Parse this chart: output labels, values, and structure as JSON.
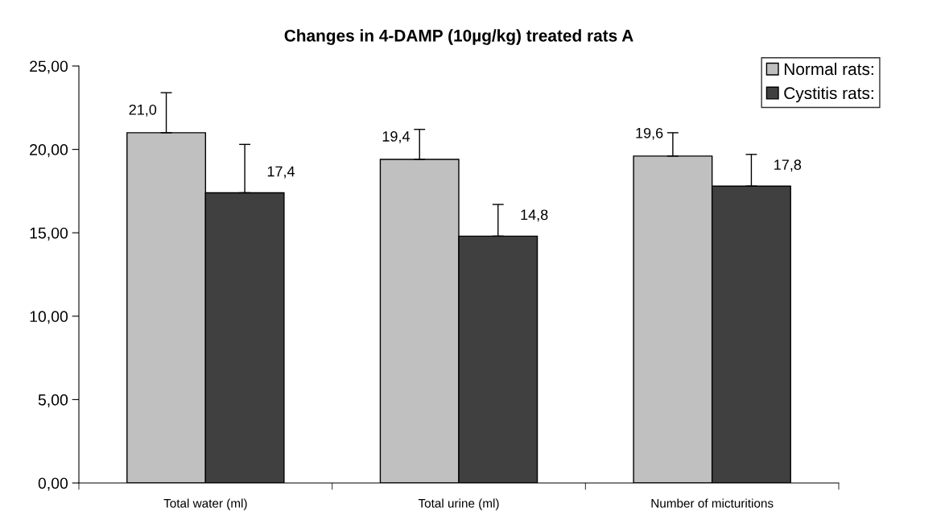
{
  "chart_data": {
    "type": "bar",
    "title": "Changes in 4-DAMP (10µg/kg) treated rats A",
    "categories": [
      "Total water (ml)",
      "Total urine (ml)",
      "Number of micturitions"
    ],
    "series": [
      {
        "name": "Normal rats:",
        "color": "#c0c0c0",
        "values": [
          21.0,
          19.4,
          19.6
        ],
        "errors": [
          2.4,
          1.8,
          1.4
        ],
        "value_labels": [
          "21,0",
          "19,4",
          "19,6"
        ]
      },
      {
        "name": "Cystitis rats:",
        "color": "#404040",
        "values": [
          17.4,
          14.8,
          17.8
        ],
        "errors": [
          2.9,
          1.9,
          1.9
        ],
        "value_labels": [
          "17,4",
          "14,8",
          "17,8"
        ]
      }
    ],
    "ylim": [
      0,
      25
    ],
    "yticks": [
      {
        "value": 0,
        "label": "0,00"
      },
      {
        "value": 5,
        "label": "5,00"
      },
      {
        "value": 10,
        "label": "10,00"
      },
      {
        "value": 15,
        "label": "15,00"
      },
      {
        "value": 20,
        "label": "20,00"
      },
      {
        "value": 25,
        "label": "25,00"
      }
    ],
    "grid": false,
    "legend": "top right"
  }
}
